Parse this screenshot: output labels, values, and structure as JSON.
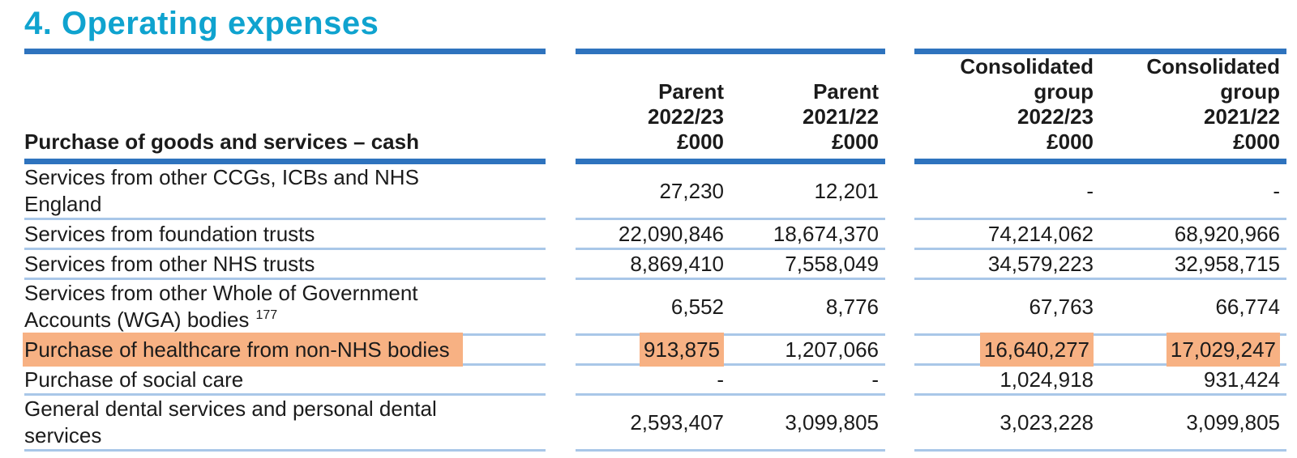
{
  "page": {
    "title": "4. Operating expenses"
  },
  "colors": {
    "title": "#0FA3CF",
    "rule": "#2E73BE",
    "divider": "#A9C7E8",
    "highlight": "#F7B183"
  },
  "table": {
    "section_header": "Purchase of goods and services – cash",
    "columns": [
      "Parent\n2022/23\n£000",
      "Parent\n2021/22\n£000",
      "Consolidated\ngroup\n2022/23\n£000",
      "Consolidated\ngroup\n2021/22\n£000"
    ],
    "rows": [
      {
        "label": "Services from other CCGs, ICBs and NHS England",
        "sup": "",
        "label_highlight": false,
        "values": [
          "27,230",
          "12,201",
          "-",
          "-"
        ],
        "value_highlights": [
          false,
          false,
          false,
          false
        ]
      },
      {
        "label": "Services from foundation trusts",
        "sup": "",
        "label_highlight": false,
        "values": [
          "22,090,846",
          "18,674,370",
          "74,214,062",
          "68,920,966"
        ],
        "value_highlights": [
          false,
          false,
          false,
          false
        ]
      },
      {
        "label": "Services from other NHS trusts",
        "sup": "",
        "label_highlight": false,
        "values": [
          "8,869,410",
          "7,558,049",
          "34,579,223",
          "32,958,715"
        ],
        "value_highlights": [
          false,
          false,
          false,
          false
        ]
      },
      {
        "label": "Services from other Whole of Government Accounts (WGA) bodies",
        "sup": "177",
        "label_highlight": false,
        "values": [
          "6,552",
          "8,776",
          "67,763",
          "66,774"
        ],
        "value_highlights": [
          false,
          false,
          false,
          false
        ]
      },
      {
        "label": "Purchase of healthcare from non-NHS bodies",
        "sup": "",
        "label_highlight": true,
        "values": [
          "913,875",
          "1,207,066",
          "16,640,277",
          "17,029,247"
        ],
        "value_highlights": [
          true,
          false,
          true,
          true
        ]
      },
      {
        "label": "Purchase of social care",
        "sup": "",
        "label_highlight": false,
        "values": [
          "-",
          "-",
          "1,024,918",
          "931,424"
        ],
        "value_highlights": [
          false,
          false,
          false,
          false
        ]
      },
      {
        "label": "General dental services and personal dental services",
        "sup": "",
        "label_highlight": false,
        "values": [
          "2,593,407",
          "3,099,805",
          "3,023,228",
          "3,099,805"
        ],
        "value_highlights": [
          false,
          false,
          false,
          false
        ]
      }
    ]
  }
}
